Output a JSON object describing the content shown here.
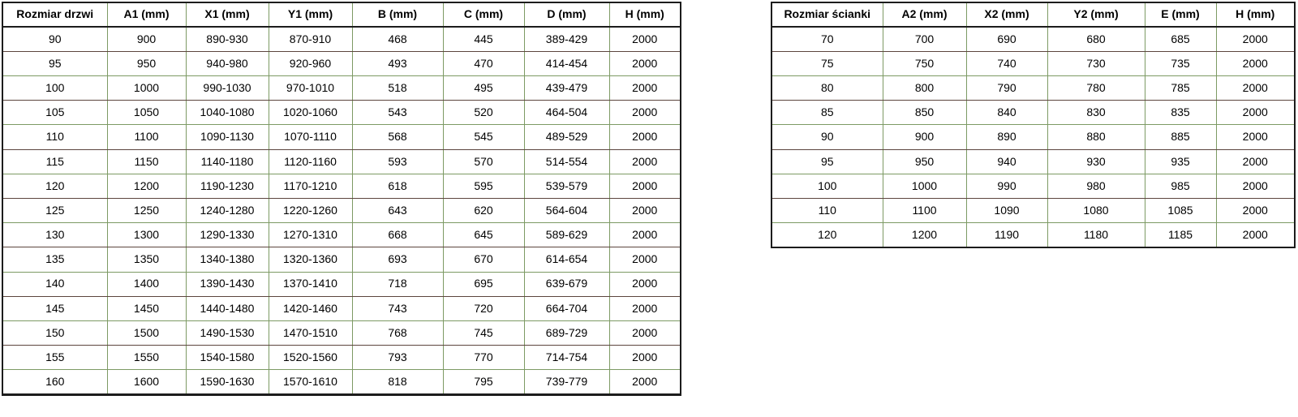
{
  "colors": {
    "border_green": "#7d9a64",
    "border_dark": "#5c453e",
    "border_outer": "#1c1c1c",
    "text": "#000000",
    "background": "#ffffff"
  },
  "door_table": {
    "headers": [
      "Rozmiar drzwi",
      "A1 (mm)",
      "X1 (mm)",
      "Y1 (mm)",
      "B (mm)",
      "C (mm)",
      "D (mm)",
      "H (mm)"
    ],
    "rows": [
      [
        "90",
        "900",
        "890-930",
        "870-910",
        "468",
        "445",
        "389-429",
        "2000"
      ],
      [
        "95",
        "950",
        "940-980",
        "920-960",
        "493",
        "470",
        "414-454",
        "2000"
      ],
      [
        "100",
        "1000",
        "990-1030",
        "970-1010",
        "518",
        "495",
        "439-479",
        "2000"
      ],
      [
        "105",
        "1050",
        "1040-1080",
        "1020-1060",
        "543",
        "520",
        "464-504",
        "2000"
      ],
      [
        "110",
        "1100",
        "1090-1130",
        "1070-1110",
        "568",
        "545",
        "489-529",
        "2000"
      ],
      [
        "115",
        "1150",
        "1140-1180",
        "1120-1160",
        "593",
        "570",
        "514-554",
        "2000"
      ],
      [
        "120",
        "1200",
        "1190-1230",
        "1170-1210",
        "618",
        "595",
        "539-579",
        "2000"
      ],
      [
        "125",
        "1250",
        "1240-1280",
        "1220-1260",
        "643",
        "620",
        "564-604",
        "2000"
      ],
      [
        "130",
        "1300",
        "1290-1330",
        "1270-1310",
        "668",
        "645",
        "589-629",
        "2000"
      ],
      [
        "135",
        "1350",
        "1340-1380",
        "1320-1360",
        "693",
        "670",
        "614-654",
        "2000"
      ],
      [
        "140",
        "1400",
        "1390-1430",
        "1370-1410",
        "718",
        "695",
        "639-679",
        "2000"
      ],
      [
        "145",
        "1450",
        "1440-1480",
        "1420-1460",
        "743",
        "720",
        "664-704",
        "2000"
      ],
      [
        "150",
        "1500",
        "1490-1530",
        "1470-1510",
        "768",
        "745",
        "689-729",
        "2000"
      ],
      [
        "155",
        "1550",
        "1540-1580",
        "1520-1560",
        "793",
        "770",
        "714-754",
        "2000"
      ],
      [
        "160",
        "1600",
        "1590-1630",
        "1570-1610",
        "818",
        "795",
        "739-779",
        "2000"
      ]
    ]
  },
  "wall_table": {
    "headers": [
      "Rozmiar ścianki",
      "A2 (mm)",
      "X2 (mm)",
      "Y2 (mm)",
      "E (mm)",
      "H (mm)"
    ],
    "rows": [
      [
        "70",
        "700",
        "690",
        "680",
        "685",
        "2000"
      ],
      [
        "75",
        "750",
        "740",
        "730",
        "735",
        "2000"
      ],
      [
        "80",
        "800",
        "790",
        "780",
        "785",
        "2000"
      ],
      [
        "85",
        "850",
        "840",
        "830",
        "835",
        "2000"
      ],
      [
        "90",
        "900",
        "890",
        "880",
        "885",
        "2000"
      ],
      [
        "95",
        "950",
        "940",
        "930",
        "935",
        "2000"
      ],
      [
        "100",
        "1000",
        "990",
        "980",
        "985",
        "2000"
      ],
      [
        "110",
        "1100",
        "1090",
        "1080",
        "1085",
        "2000"
      ],
      [
        "120",
        "1200",
        "1190",
        "1180",
        "1185",
        "2000"
      ]
    ]
  }
}
